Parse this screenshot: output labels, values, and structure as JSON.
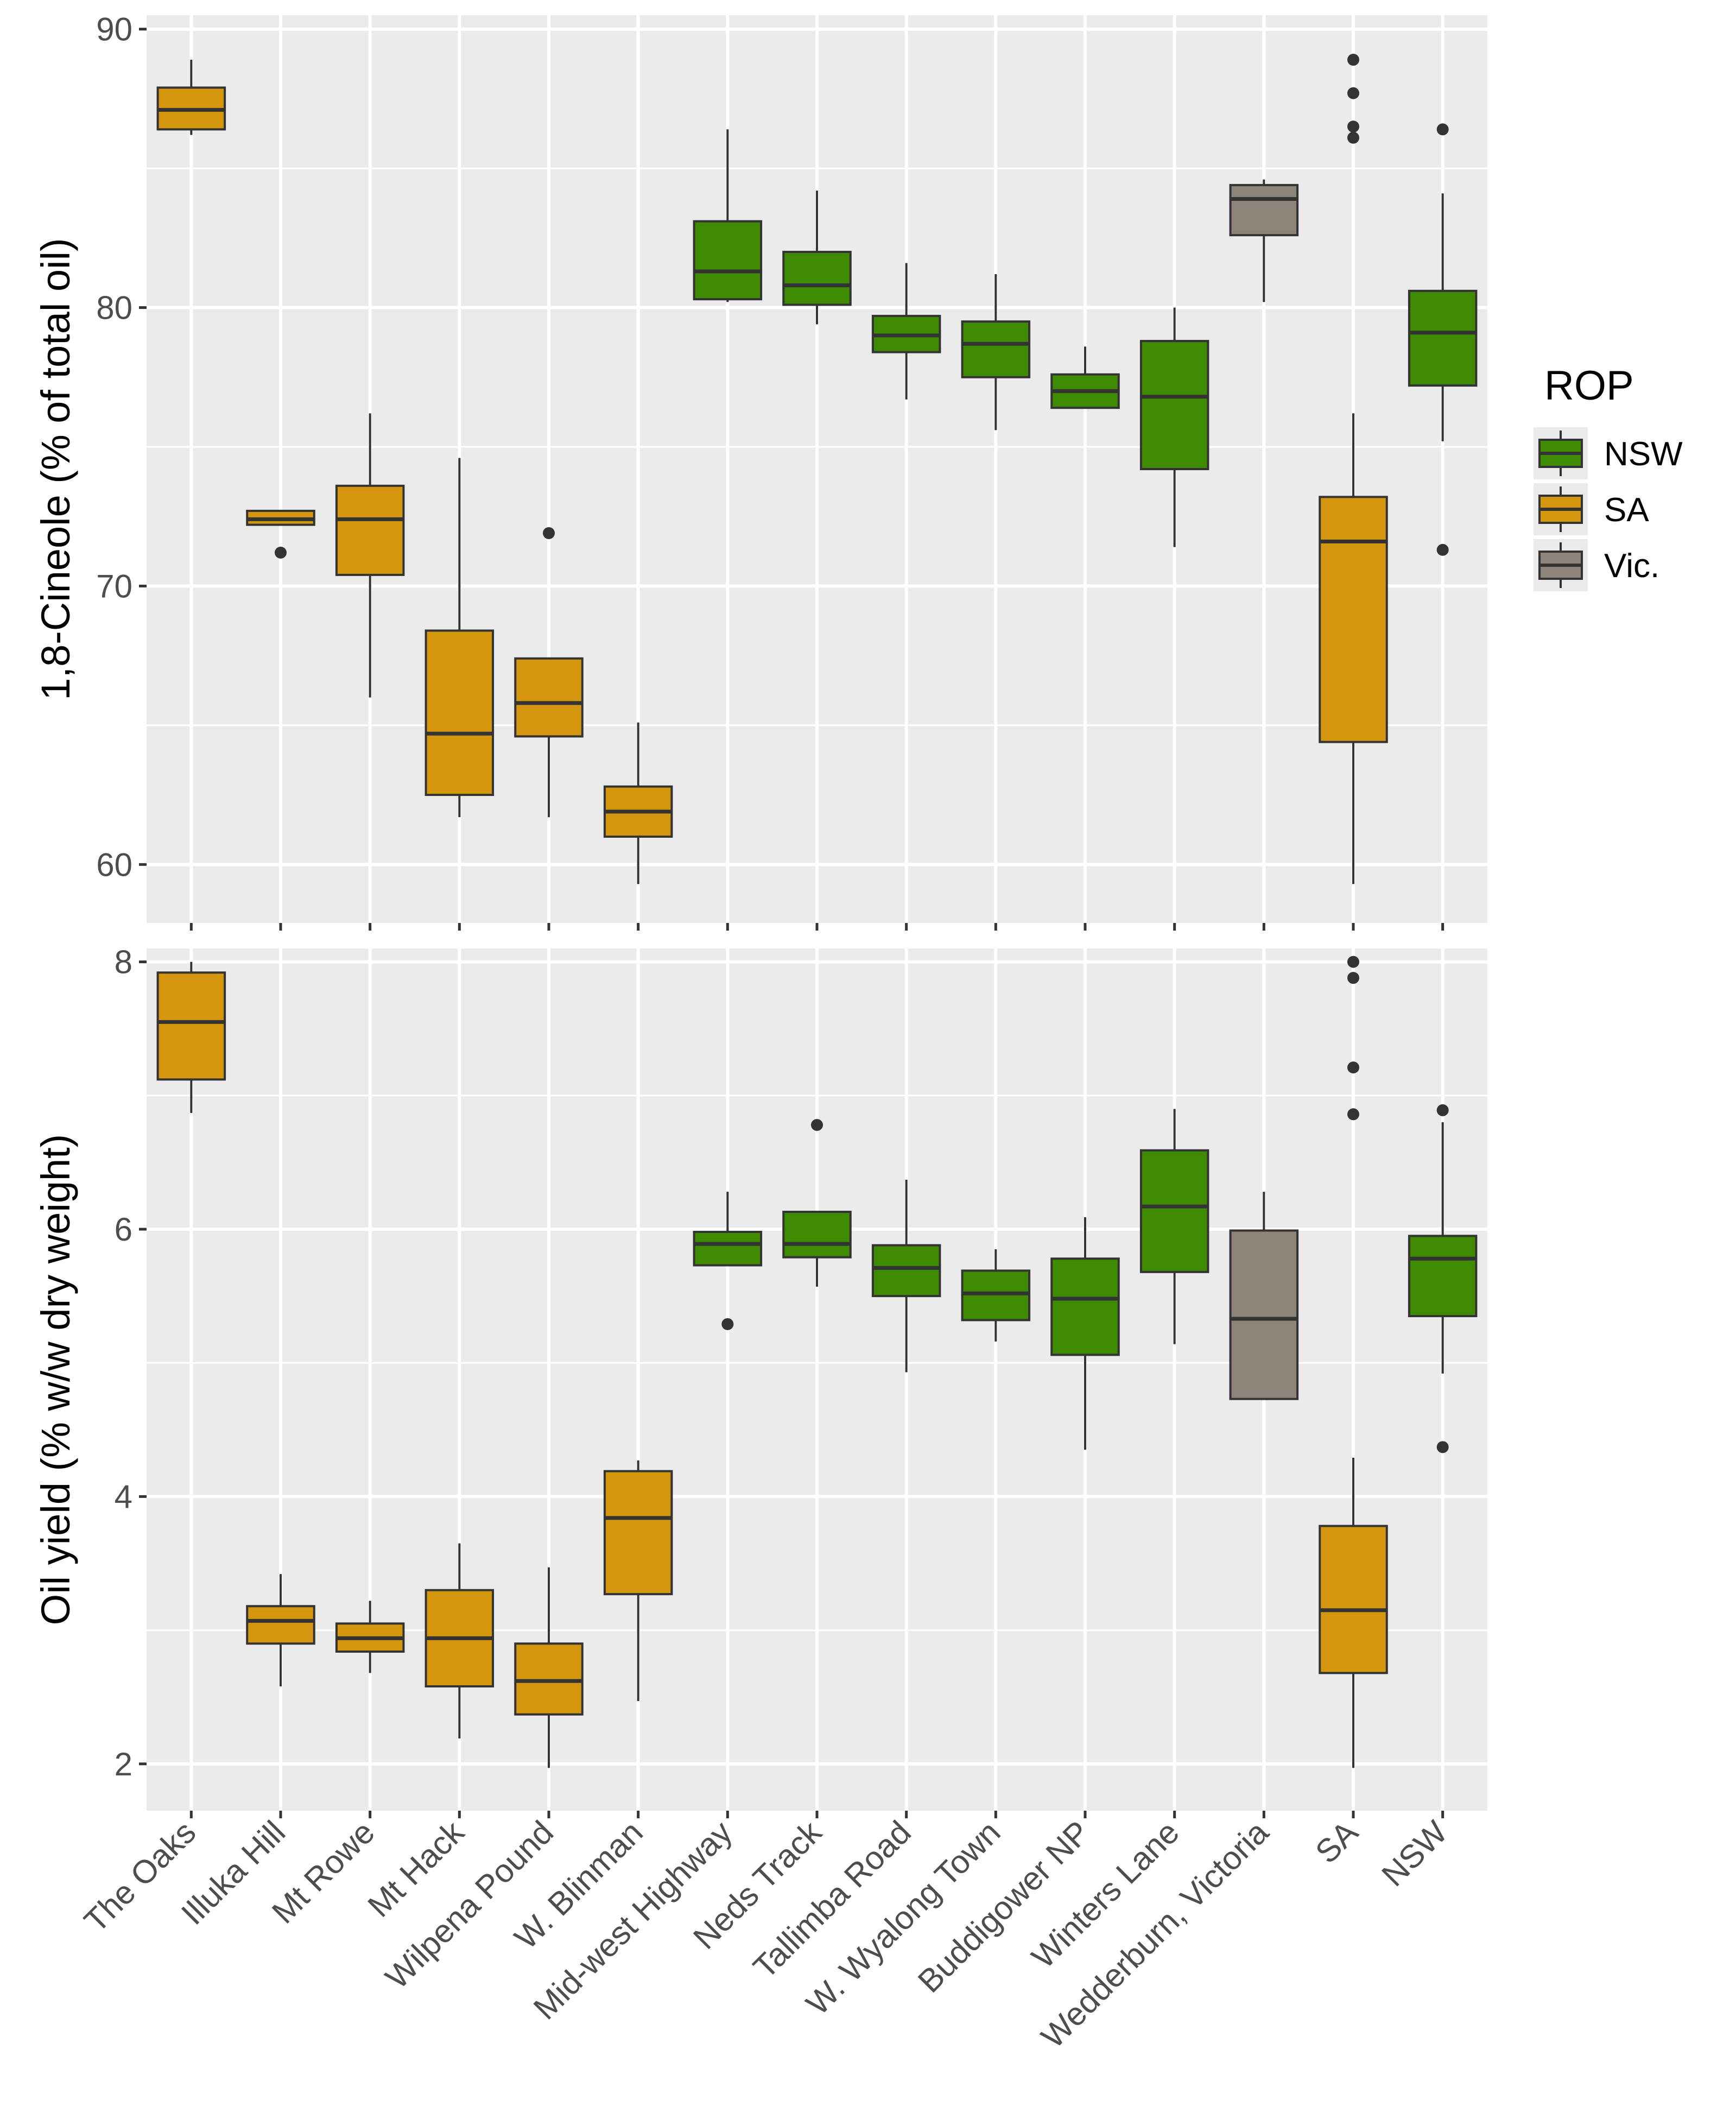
{
  "chart_data": {
    "type": "boxplot",
    "categories": [
      "The Oaks",
      "Illuka Hill",
      "Mt Rowe",
      "Mt Hack",
      "Wilpena Pound",
      "W. Blinman",
      "Mid-west Highway",
      "Neds Track",
      "Tallimba Road",
      "W. Wyalong Town",
      "Buddigower NP",
      "Winters Lane",
      "Wedderburn, Victoria",
      "SA",
      "NSW"
    ],
    "groups": [
      "SA",
      "SA",
      "SA",
      "SA",
      "SA",
      "SA",
      "NSW",
      "NSW",
      "NSW",
      "NSW",
      "NSW",
      "NSW",
      "Vic.",
      "SA",
      "NSW"
    ],
    "legend": {
      "title": "ROP",
      "position": "right",
      "entries": [
        {
          "label": "NSW",
          "color": "#3f8b00"
        },
        {
          "label": "SA",
          "color": "#d4960d"
        },
        {
          "label": "Vic.",
          "color": "#8c8479"
        }
      ]
    },
    "panels": [
      {
        "ylabel": "1,8-Cineole (% of total oil)",
        "ylim": [
          57.9,
          90.5
        ],
        "yticks": [
          60,
          70,
          80,
          90
        ],
        "ytick_labels": [
          "60",
          "70",
          "80",
          "90"
        ],
        "boxes": [
          {
            "lower_whisker": 86.2,
            "q1": 86.4,
            "median": 87.1,
            "q3": 87.9,
            "upper_whisker": 88.9,
            "outliers": []
          },
          {
            "lower_whisker": 72.2,
            "q1": 72.2,
            "median": 72.4,
            "q3": 72.7,
            "upper_whisker": 72.7,
            "outliers": [
              71.2
            ]
          },
          {
            "lower_whisker": 66.0,
            "q1": 70.4,
            "median": 72.4,
            "q3": 73.6,
            "upper_whisker": 76.2,
            "outliers": []
          },
          {
            "lower_whisker": 61.7,
            "q1": 62.5,
            "median": 64.7,
            "q3": 68.4,
            "upper_whisker": 74.6,
            "outliers": []
          },
          {
            "lower_whisker": 61.7,
            "q1": 64.6,
            "median": 65.8,
            "q3": 67.4,
            "upper_whisker": 67.4,
            "outliers": [
              71.9
            ]
          },
          {
            "lower_whisker": 59.3,
            "q1": 61.0,
            "median": 61.9,
            "q3": 62.8,
            "upper_whisker": 65.1,
            "outliers": []
          },
          {
            "lower_whisker": 80.2,
            "q1": 80.3,
            "median": 81.3,
            "q3": 83.1,
            "upper_whisker": 86.4,
            "outliers": []
          },
          {
            "lower_whisker": 79.4,
            "q1": 80.1,
            "median": 80.8,
            "q3": 82.0,
            "upper_whisker": 84.2,
            "outliers": []
          },
          {
            "lower_whisker": 76.7,
            "q1": 78.4,
            "median": 79.0,
            "q3": 79.7,
            "upper_whisker": 81.6,
            "outliers": []
          },
          {
            "lower_whisker": 75.6,
            "q1": 77.5,
            "median": 78.7,
            "q3": 79.5,
            "upper_whisker": 81.2,
            "outliers": []
          },
          {
            "lower_whisker": 76.4,
            "q1": 76.4,
            "median": 77.0,
            "q3": 77.6,
            "upper_whisker": 78.6,
            "outliers": []
          },
          {
            "lower_whisker": 71.4,
            "q1": 74.2,
            "median": 76.8,
            "q3": 78.8,
            "upper_whisker": 80.0,
            "outliers": []
          },
          {
            "lower_whisker": 80.2,
            "q1": 82.6,
            "median": 83.9,
            "q3": 84.4,
            "upper_whisker": 84.6,
            "outliers": []
          },
          {
            "lower_whisker": 59.3,
            "q1": 64.4,
            "median": 71.6,
            "q3": 73.2,
            "upper_whisker": 76.2,
            "outliers": [
              86.1,
              86.5,
              87.7,
              88.9
            ]
          },
          {
            "lower_whisker": 75.2,
            "q1": 77.2,
            "median": 79.1,
            "q3": 80.6,
            "upper_whisker": 84.1,
            "outliers": [
              71.3,
              86.4
            ]
          }
        ]
      },
      {
        "ylabel": "Oil yield (% w/w dry weight)",
        "ylim": [
          1.65,
          8.1
        ],
        "yticks": [
          2,
          4,
          6,
          8
        ],
        "ytick_labels": [
          "2",
          "4",
          "6",
          "8"
        ],
        "boxes": [
          {
            "lower_whisker": 6.87,
            "q1": 7.12,
            "median": 7.55,
            "q3": 7.92,
            "upper_whisker": 8.0,
            "outliers": []
          },
          {
            "lower_whisker": 2.58,
            "q1": 2.9,
            "median": 3.07,
            "q3": 3.18,
            "upper_whisker": 3.42,
            "outliers": []
          },
          {
            "lower_whisker": 2.68,
            "q1": 2.84,
            "median": 2.94,
            "q3": 3.05,
            "upper_whisker": 3.22,
            "outliers": []
          },
          {
            "lower_whisker": 2.19,
            "q1": 2.58,
            "median": 2.94,
            "q3": 3.3,
            "upper_whisker": 3.65,
            "outliers": []
          },
          {
            "lower_whisker": 1.97,
            "q1": 2.37,
            "median": 2.62,
            "q3": 2.9,
            "upper_whisker": 3.47,
            "outliers": []
          },
          {
            "lower_whisker": 2.47,
            "q1": 3.27,
            "median": 3.84,
            "q3": 4.19,
            "upper_whisker": 4.27,
            "outliers": []
          },
          {
            "lower_whisker": 5.73,
            "q1": 5.73,
            "median": 5.89,
            "q3": 5.98,
            "upper_whisker": 6.28,
            "outliers": [
              5.29
            ]
          },
          {
            "lower_whisker": 5.57,
            "q1": 5.79,
            "median": 5.89,
            "q3": 6.13,
            "upper_whisker": 6.13,
            "outliers": [
              6.78
            ]
          },
          {
            "lower_whisker": 4.93,
            "q1": 5.5,
            "median": 5.71,
            "q3": 5.88,
            "upper_whisker": 6.37,
            "outliers": []
          },
          {
            "lower_whisker": 5.16,
            "q1": 5.32,
            "median": 5.52,
            "q3": 5.69,
            "upper_whisker": 5.85,
            "outliers": []
          },
          {
            "lower_whisker": 4.35,
            "q1": 5.06,
            "median": 5.48,
            "q3": 5.78,
            "upper_whisker": 6.09,
            "outliers": []
          },
          {
            "lower_whisker": 5.14,
            "q1": 5.68,
            "median": 6.17,
            "q3": 6.59,
            "upper_whisker": 6.9,
            "outliers": []
          },
          {
            "lower_whisker": 4.73,
            "q1": 4.73,
            "median": 5.33,
            "q3": 5.99,
            "upper_whisker": 6.28,
            "outliers": []
          },
          {
            "lower_whisker": 1.97,
            "q1": 2.68,
            "median": 3.15,
            "q3": 3.78,
            "upper_whisker": 4.29,
            "outliers": [
              6.86,
              7.21,
              7.88,
              8.0
            ]
          },
          {
            "lower_whisker": 4.92,
            "q1": 5.35,
            "median": 5.78,
            "q3": 5.95,
            "upper_whisker": 6.8,
            "outliers": [
              4.37,
              6.89
            ]
          }
        ]
      }
    ]
  }
}
